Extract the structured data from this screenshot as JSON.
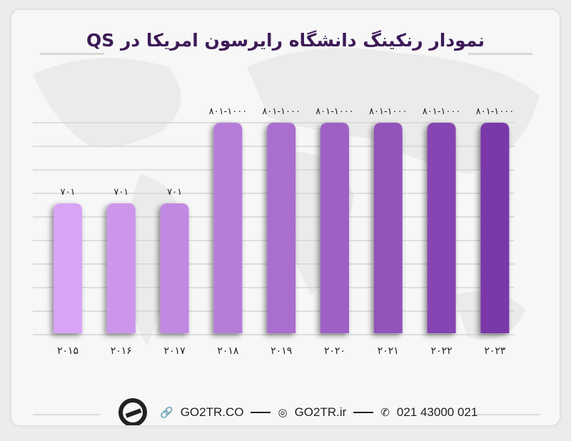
{
  "title": "نمودار رنکینگ دانشگاه رایرسون امریکا در QS",
  "footer": {
    "website": "GO2TR.CO",
    "instagram": "GO2TR.ir",
    "phone": "021 43000 021",
    "icons": [
      "logo-plane",
      "link-icon",
      "instagram-icon",
      "phone-icon"
    ]
  },
  "colors": {
    "bar_light": "#d9a4f5",
    "bar_dark": "#7a37a8",
    "title": "#3d1b57"
  },
  "chart_data": {
    "type": "bar",
    "title": "نمودار رنکینگ دانشگاه رایرسون امریکا در QS",
    "categories": [
      "۲۰۱۵",
      "۲۰۱۶",
      "۲۰۱۷",
      "۲۰۱۸",
      "۲۰۱۹",
      "۲۰۲۰",
      "۲۰۲۱",
      "۲۰۲۲",
      "۲۰۲۳"
    ],
    "values": [
      "۷۰۱",
      "۷۰۱",
      "۷۰۱",
      "۸۰۱-۱۰۰۰",
      "۸۰۱-۱۰۰۰",
      "۸۰۱-۱۰۰۰",
      "۸۰۱-۱۰۰۰",
      "۸۰۱-۱۰۰۰",
      "۸۰۱-۱۰۰۰"
    ],
    "grid": true,
    "legend": "none"
  }
}
